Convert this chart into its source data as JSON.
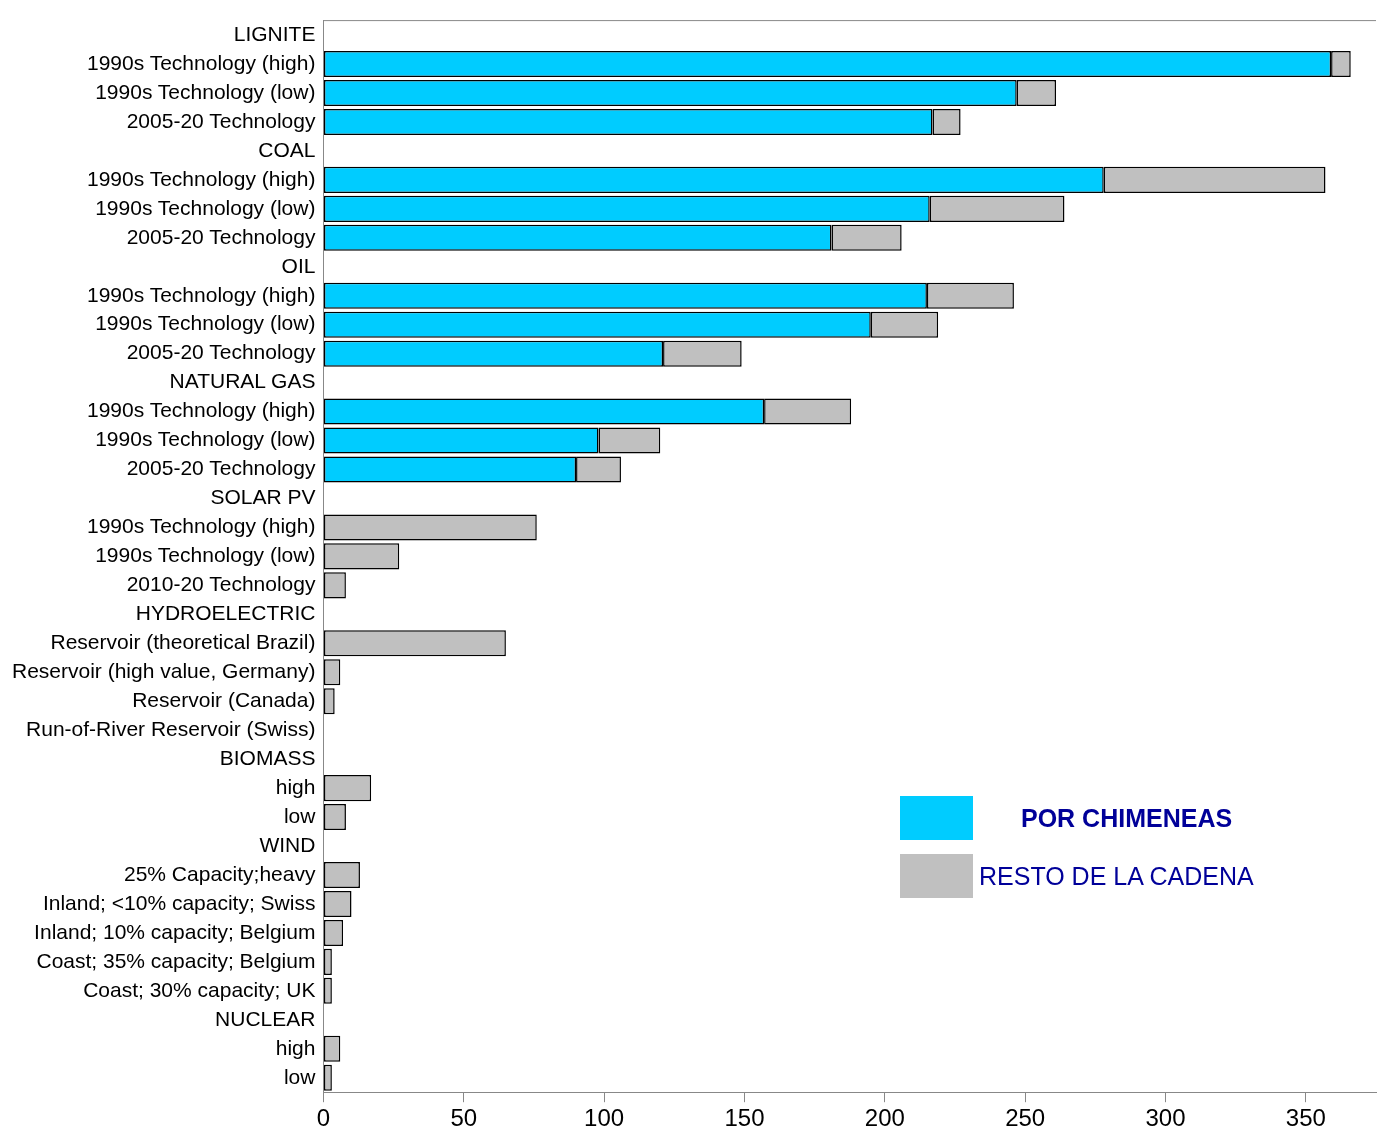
{
  "chart_data": {
    "type": "bar",
    "orientation": "horizontal",
    "stacked": true,
    "categories": [
      "LIGNITE",
      "1990s Technology (high)",
      "1990s Technology (low)",
      "2005-20 Technology",
      "COAL",
      "1990s Technology (high)",
      "1990s Technology (low)",
      "2005-20 Technology",
      "OIL",
      "1990s Technology (high)",
      "1990s Technology (low)",
      "2005-20 Technology",
      "NATURAL GAS",
      "1990s Technology (high)",
      "1990s Technology (low)",
      "2005-20 Technology",
      "SOLAR PV",
      "1990s Technology (high)",
      "1990s Technology (low)",
      "2010-20 Technology",
      "HYDROELECTRIC",
      "Reservoir (theoretical Brazil)",
      "Reservoir (high value, Germany)",
      "Reservoir (Canada)",
      "Run-of-River Reservoir (Swiss)",
      "BIOMASS",
      "high",
      "low",
      "WIND",
      "25% Capacity;heavy",
      "Inland; <10% capacity; Swiss",
      "Inland; 10% capacity; Belgium",
      "Coast; 35% capacity; Belgium",
      "Coast; 30% capacity; UK",
      "NUCLEAR",
      "high",
      "low"
    ],
    "series": [
      {
        "name": "POR CHIMENEAS",
        "color": "#00ccff",
        "values": [
          null,
          359,
          247,
          217,
          null,
          278,
          216,
          181,
          null,
          215,
          195,
          121,
          null,
          157,
          98,
          90,
          null,
          null,
          null,
          null,
          null,
          null,
          null,
          null,
          null,
          null,
          null,
          null,
          null,
          null,
          null,
          null,
          null,
          null,
          null,
          null,
          null
        ]
      },
      {
        "name": "RESTO DE LA CADENA",
        "color": "#c0c0c0",
        "values": [
          null,
          7,
          14,
          10,
          null,
          79,
          48,
          25,
          null,
          31,
          24,
          28,
          null,
          31,
          22,
          16,
          null,
          76,
          27,
          8,
          null,
          65,
          6,
          4,
          null,
          null,
          17,
          8,
          null,
          13,
          10,
          7,
          3,
          3,
          null,
          6,
          3
        ]
      }
    ],
    "xlim": [
      0,
      375
    ],
    "xticks": [
      0,
      50,
      100,
      150,
      200,
      250,
      300,
      350
    ],
    "grid": false,
    "legend": "bottom right"
  }
}
